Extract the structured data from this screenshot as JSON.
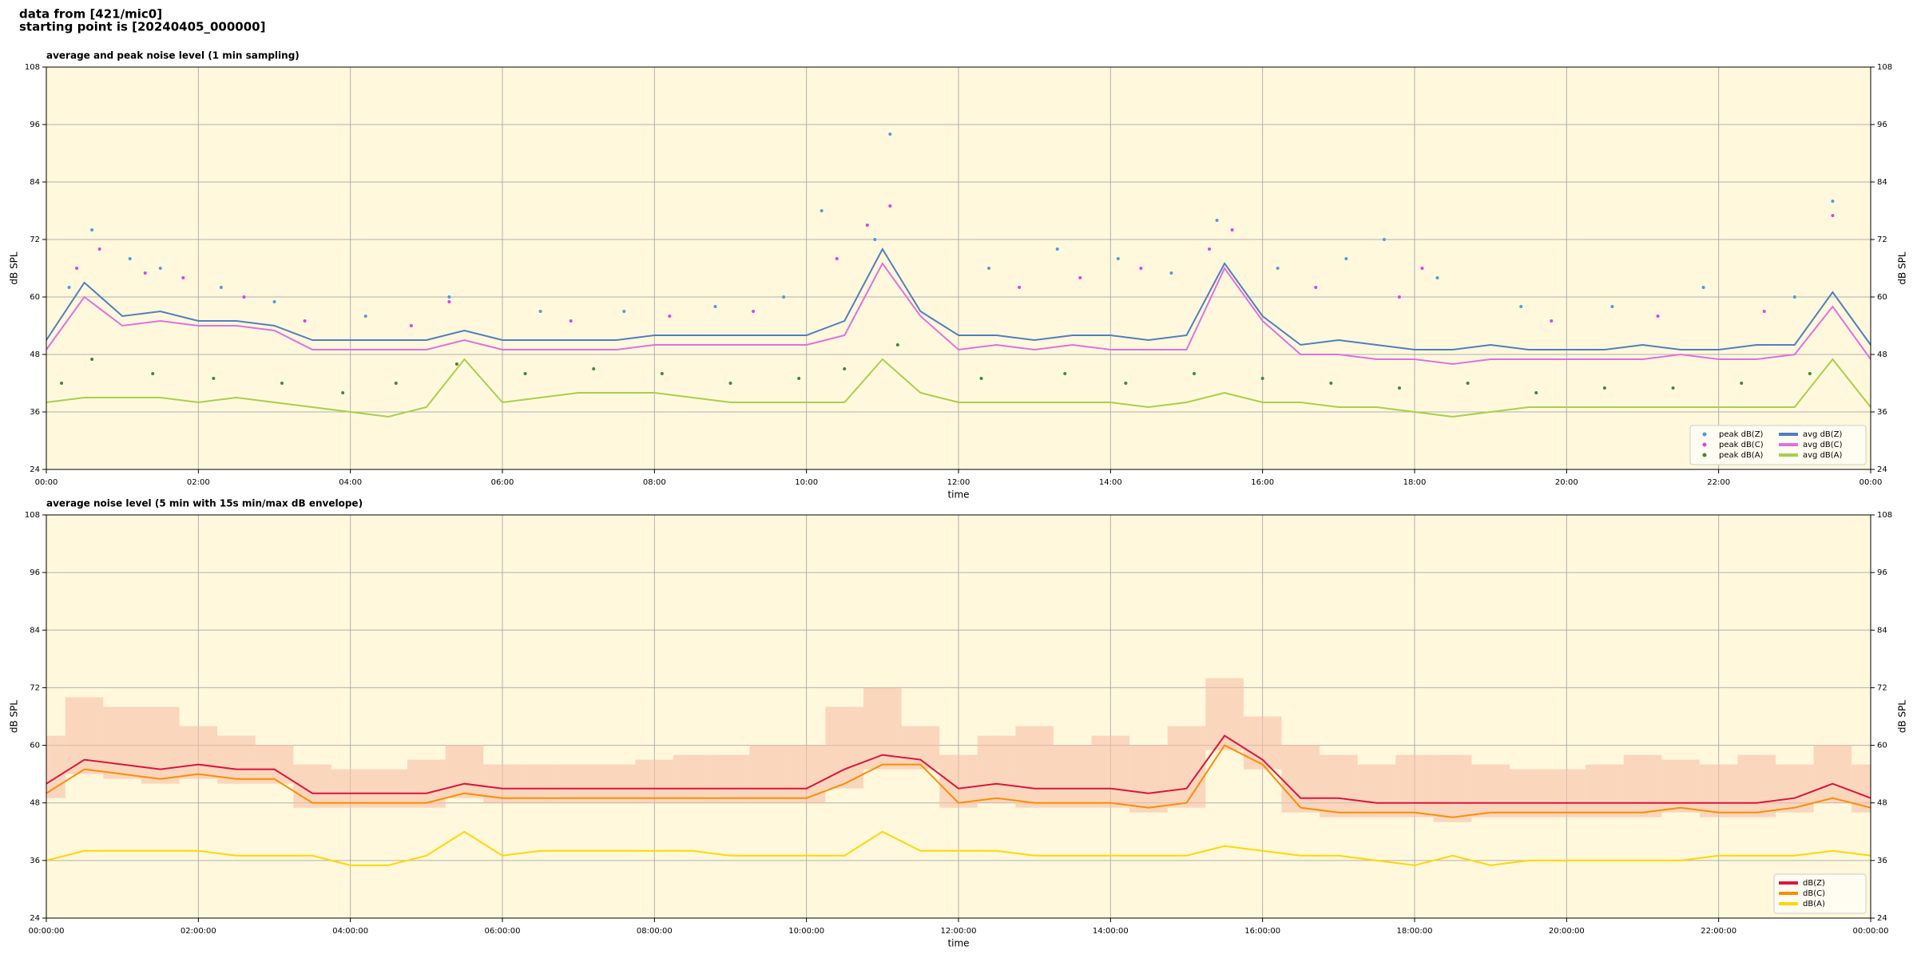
{
  "header": {
    "lines": [
      "data from [421/mic0]",
      "starting point is [20240405_000000]"
    ]
  },
  "chart_data": [
    {
      "type": "line",
      "title": "average and peak noise level (1 min sampling)",
      "xlabel": "time",
      "ylabel": "dB SPL",
      "grid": true,
      "legend": "lower right",
      "legend_columns": 2,
      "xlim": [
        0,
        24
      ],
      "ylim": [
        24,
        108
      ],
      "xticks": [
        {
          "value": 0,
          "label": "00:00"
        },
        {
          "value": 2,
          "label": "02:00"
        },
        {
          "value": 4,
          "label": "04:00"
        },
        {
          "value": 6,
          "label": "06:00"
        },
        {
          "value": 8,
          "label": "08:00"
        },
        {
          "value": 10,
          "label": "10:00"
        },
        {
          "value": 12,
          "label": "12:00"
        },
        {
          "value": 14,
          "label": "14:00"
        },
        {
          "value": 16,
          "label": "16:00"
        },
        {
          "value": 18,
          "label": "18:00"
        },
        {
          "value": 20,
          "label": "20:00"
        },
        {
          "value": 22,
          "label": "22:00"
        },
        {
          "value": 24,
          "label": "00:00"
        }
      ],
      "yticks": [
        24,
        36,
        48,
        60,
        72,
        84,
        96,
        108
      ],
      "x": [
        0,
        0.5,
        1,
        1.5,
        2,
        2.5,
        3,
        3.5,
        4,
        4.5,
        5,
        5.5,
        6,
        6.5,
        7,
        7.5,
        8,
        8.5,
        9,
        9.5,
        10,
        10.5,
        11,
        11.5,
        12,
        12.5,
        13,
        13.5,
        14,
        14.5,
        15,
        15.5,
        16,
        16.5,
        17,
        17.5,
        18,
        18.5,
        19,
        19.5,
        20,
        20.5,
        21,
        21.5,
        22,
        22.5,
        23,
        23.5,
        24
      ],
      "series": [
        {
          "name": "peak dB(Z)",
          "style": "scatter",
          "color": "#4a9fd8",
          "x": [
            0.3,
            0.6,
            1.1,
            1.5,
            2.3,
            3.0,
            4.2,
            5.3,
            6.5,
            7.6,
            8.8,
            9.7,
            10.2,
            10.9,
            11.1,
            12.4,
            13.3,
            14.1,
            14.8,
            15.4,
            16.2,
            17.1,
            17.6,
            18.3,
            19.4,
            20.6,
            21.8,
            23.0,
            23.5
          ],
          "values": [
            62,
            74,
            68,
            66,
            62,
            59,
            56,
            60,
            57,
            57,
            58,
            60,
            78,
            72,
            94,
            66,
            70,
            68,
            65,
            76,
            66,
            68,
            72,
            64,
            58,
            58,
            62,
            60,
            80
          ]
        },
        {
          "name": "peak dB(C)",
          "style": "scatter",
          "color": "#e040e0",
          "x": [
            0.4,
            0.7,
            1.3,
            1.8,
            2.6,
            3.4,
            4.8,
            5.3,
            6.9,
            8.2,
            9.3,
            10.4,
            10.8,
            11.1,
            12.8,
            13.6,
            14.4,
            15.3,
            15.6,
            16.7,
            17.8,
            18.1,
            19.8,
            21.2,
            22.6,
            23.5
          ],
          "values": [
            66,
            70,
            65,
            64,
            60,
            55,
            54,
            59,
            55,
            56,
            57,
            68,
            75,
            79,
            62,
            64,
            66,
            70,
            74,
            62,
            60,
            66,
            55,
            56,
            57,
            77
          ]
        },
        {
          "name": "peak dB(A)",
          "style": "scatter",
          "color": "#3a8a3a",
          "x": [
            0.2,
            0.6,
            1.4,
            2.2,
            3.1,
            3.9,
            4.6,
            5.4,
            6.3,
            7.2,
            8.1,
            9.0,
            9.9,
            10.5,
            11.2,
            12.3,
            13.4,
            14.2,
            15.1,
            16.0,
            16.9,
            17.8,
            18.7,
            19.6,
            20.5,
            21.4,
            22.3,
            23.2
          ],
          "values": [
            42,
            47,
            44,
            43,
            42,
            40,
            42,
            46,
            44,
            45,
            44,
            42,
            43,
            45,
            50,
            43,
            44,
            42,
            44,
            43,
            42,
            41,
            42,
            40,
            41,
            41,
            42,
            44
          ]
        },
        {
          "name": "avg dB(Z)",
          "style": "line",
          "color": "#4f7fbf",
          "values": [
            51,
            63,
            56,
            57,
            55,
            55,
            54,
            51,
            51,
            51,
            51,
            53,
            51,
            51,
            51,
            51,
            52,
            52,
            52,
            52,
            52,
            55,
            70,
            57,
            52,
            52,
            51,
            52,
            52,
            51,
            52,
            67,
            56,
            50,
            51,
            50,
            49,
            49,
            50,
            49,
            49,
            49,
            50,
            49,
            49,
            50,
            50,
            61,
            50
          ]
        },
        {
          "name": "avg dB(C)",
          "style": "line",
          "color": "#e070e0",
          "values": [
            49,
            60,
            54,
            55,
            54,
            54,
            53,
            49,
            49,
            49,
            49,
            51,
            49,
            49,
            49,
            49,
            50,
            50,
            50,
            50,
            50,
            52,
            67,
            56,
            49,
            50,
            49,
            50,
            49,
            49,
            49,
            66,
            55,
            48,
            48,
            47,
            47,
            46,
            47,
            47,
            47,
            47,
            47,
            48,
            47,
            47,
            48,
            58,
            47
          ]
        },
        {
          "name": "avg dB(A)",
          "style": "line",
          "color": "#a6d04a",
          "values": [
            38,
            39,
            39,
            39,
            38,
            39,
            38,
            37,
            36,
            35,
            37,
            47,
            38,
            39,
            40,
            40,
            40,
            39,
            38,
            38,
            38,
            38,
            47,
            40,
            38,
            38,
            38,
            38,
            38,
            37,
            38,
            40,
            38,
            38,
            37,
            37,
            36,
            35,
            36,
            37,
            37,
            37,
            37,
            37,
            37,
            37,
            37,
            47,
            37
          ]
        }
      ]
    },
    {
      "type": "line",
      "title": "average noise level (5 min with 15s min/max dB envelope)",
      "xlabel": "time",
      "ylabel": "dB SPL",
      "grid": true,
      "legend": "lower right",
      "legend_columns": 1,
      "xlim": [
        0,
        24
      ],
      "ylim": [
        24,
        108
      ],
      "xticks": [
        {
          "value": 0,
          "label": "00:00:00"
        },
        {
          "value": 2,
          "label": "02:00:00"
        },
        {
          "value": 4,
          "label": "04:00:00"
        },
        {
          "value": 6,
          "label": "06:00:00"
        },
        {
          "value": 8,
          "label": "08:00:00"
        },
        {
          "value": 10,
          "label": "10:00:00"
        },
        {
          "value": 12,
          "label": "12:00:00"
        },
        {
          "value": 14,
          "label": "14:00:00"
        },
        {
          "value": 16,
          "label": "16:00:00"
        },
        {
          "value": 18,
          "label": "18:00:00"
        },
        {
          "value": 20,
          "label": "20:00:00"
        },
        {
          "value": 22,
          "label": "22:00:00"
        },
        {
          "value": 24,
          "label": "00:00:00"
        }
      ],
      "yticks": [
        24,
        36,
        48,
        60,
        72,
        84,
        96,
        108
      ],
      "x": [
        0,
        0.5,
        1,
        1.5,
        2,
        2.5,
        3,
        3.5,
        4,
        4.5,
        5,
        5.5,
        6,
        6.5,
        7,
        7.5,
        8,
        8.5,
        9,
        9.5,
        10,
        10.5,
        11,
        11.5,
        12,
        12.5,
        13,
        13.5,
        14,
        14.5,
        15,
        15.5,
        16,
        16.5,
        17,
        17.5,
        18,
        18.5,
        19,
        19.5,
        20,
        20.5,
        21,
        21.5,
        22,
        22.5,
        23,
        23.5,
        24
      ],
      "envelope": {
        "color": "#f6c0a8",
        "max": [
          62,
          70,
          68,
          68,
          64,
          62,
          60,
          56,
          55,
          55,
          57,
          60,
          56,
          56,
          56,
          56,
          57,
          58,
          58,
          60,
          60,
          68,
          72,
          64,
          58,
          62,
          64,
          60,
          62,
          60,
          64,
          74,
          66,
          60,
          58,
          56,
          58,
          58,
          56,
          55,
          55,
          56,
          58,
          57,
          56,
          58,
          56,
          60,
          56
        ],
        "min": [
          49,
          54,
          53,
          52,
          53,
          52,
          52,
          47,
          47,
          47,
          47,
          49,
          48,
          48,
          48,
          48,
          48,
          48,
          48,
          48,
          48,
          51,
          55,
          55,
          47,
          48,
          47,
          47,
          47,
          46,
          47,
          59,
          55,
          46,
          45,
          45,
          45,
          44,
          45,
          45,
          45,
          45,
          45,
          46,
          45,
          45,
          46,
          48,
          46
        ]
      },
      "series": [
        {
          "name": "dB(Z)",
          "style": "line",
          "color": "#dc143c",
          "values": [
            52,
            57,
            56,
            55,
            56,
            55,
            55,
            50,
            50,
            50,
            50,
            52,
            51,
            51,
            51,
            51,
            51,
            51,
            51,
            51,
            51,
            55,
            58,
            57,
            51,
            52,
            51,
            51,
            51,
            50,
            51,
            62,
            57,
            49,
            49,
            48,
            48,
            48,
            48,
            48,
            48,
            48,
            48,
            48,
            48,
            48,
            49,
            52,
            49
          ]
        },
        {
          "name": "dB(C)",
          "style": "line",
          "color": "#ff8c00",
          "values": [
            50,
            55,
            54,
            53,
            54,
            53,
            53,
            48,
            48,
            48,
            48,
            50,
            49,
            49,
            49,
            49,
            49,
            49,
            49,
            49,
            49,
            52,
            56,
            56,
            48,
            49,
            48,
            48,
            48,
            47,
            48,
            60,
            56,
            47,
            46,
            46,
            46,
            45,
            46,
            46,
            46,
            46,
            46,
            47,
            46,
            46,
            47,
            49,
            47
          ]
        },
        {
          "name": "dB(A)",
          "style": "line",
          "color": "#ffd700",
          "values": [
            36,
            38,
            38,
            38,
            38,
            37,
            37,
            37,
            35,
            35,
            37,
            42,
            37,
            38,
            38,
            38,
            38,
            38,
            37,
            37,
            37,
            37,
            42,
            38,
            38,
            38,
            37,
            37,
            37,
            37,
            37,
            39,
            38,
            37,
            37,
            36,
            35,
            37,
            35,
            36,
            36,
            36,
            36,
            36,
            37,
            37,
            37,
            38,
            37
          ]
        }
      ]
    }
  ]
}
